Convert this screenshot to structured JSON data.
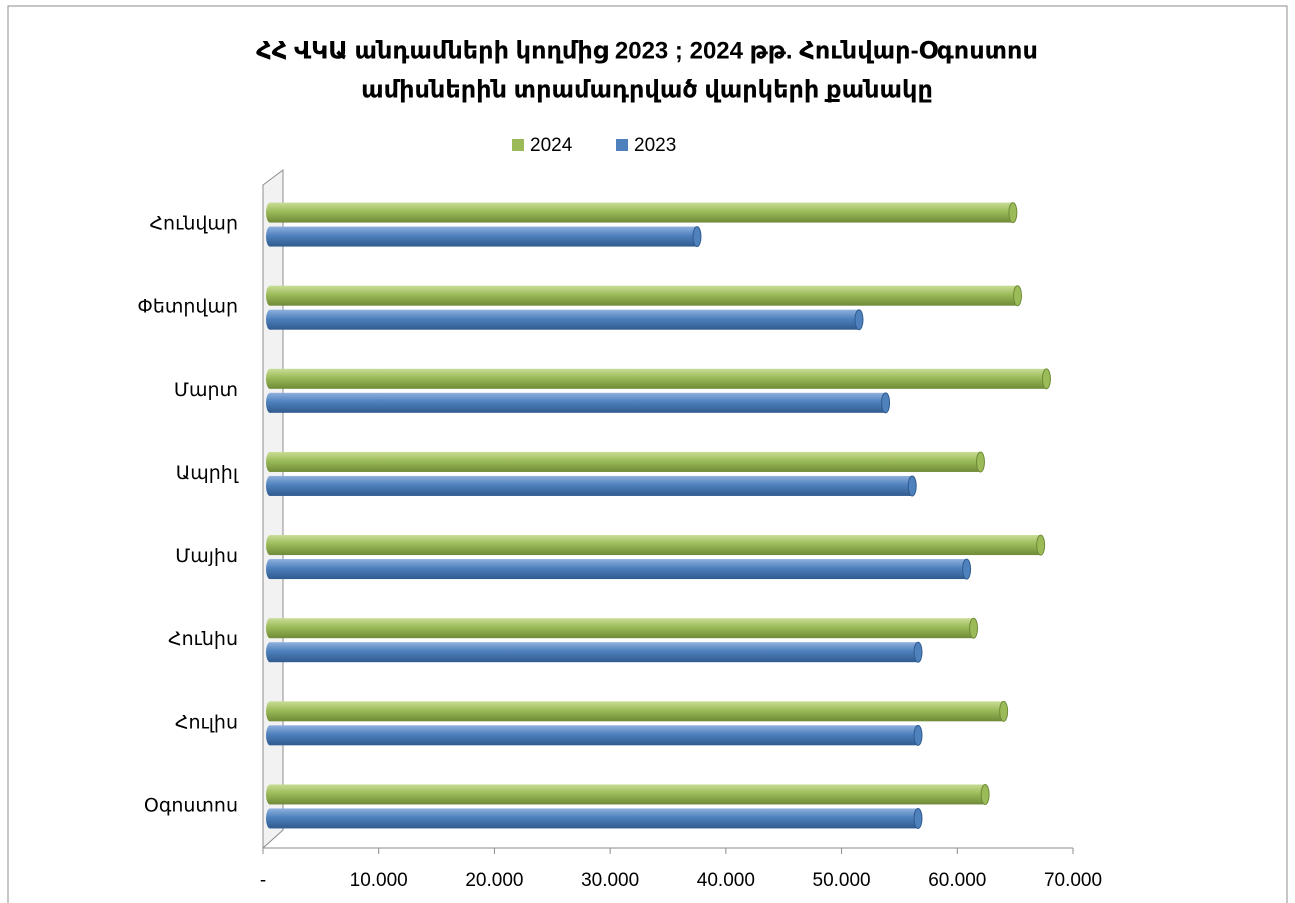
{
  "chart_data": {
    "type": "bar",
    "orientation": "horizontal",
    "title": [
      "ՀՀ ՎԿԱ անդամների կողմից 2023 ; 2024 թթ. Հունվար-Օգոստոս",
      "ամիսներին տրամադրված վարկերի քանակը"
    ],
    "categories": [
      "Հունվար",
      "Փետրվար",
      "Մարտ",
      "Ապրիլ",
      "Մայիս",
      "Հունիս",
      "Հուլիս",
      "Օգոստոս"
    ],
    "series": [
      {
        "name": "2024",
        "color": "#9bbb59",
        "values": [
          64200,
          64600,
          67100,
          61400,
          66600,
          60800,
          63400,
          61800
        ]
      },
      {
        "name": "2023",
        "color": "#4f81bd",
        "values": [
          36900,
          50900,
          53200,
          55500,
          60200,
          56000,
          56000,
          56000
        ]
      }
    ],
    "xlim": [
      0,
      70000
    ],
    "xticks": [
      {
        "value": 0,
        "label": "-"
      },
      {
        "value": 10000,
        "label": "10.000"
      },
      {
        "value": 20000,
        "label": "20.000"
      },
      {
        "value": 30000,
        "label": "30.000"
      },
      {
        "value": 40000,
        "label": "40.000"
      },
      {
        "value": 50000,
        "label": "50.000"
      },
      {
        "value": 60000,
        "label": "60.000"
      },
      {
        "value": 70000,
        "label": "70.000"
      }
    ],
    "legend": "top"
  }
}
